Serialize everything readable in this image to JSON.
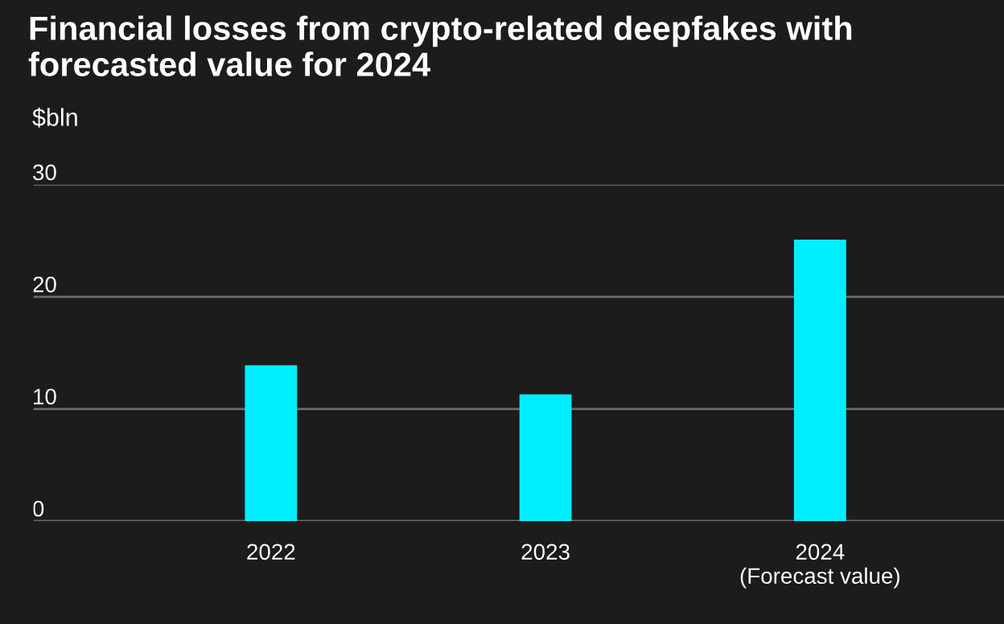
{
  "chart_data": {
    "type": "bar",
    "title": "Financial losses from crypto-related deepfakes with\nforecasted value for 2024",
    "ylabel": "$bln",
    "categories": [
      "2022",
      "2023",
      "2024\n(Forecast value)"
    ],
    "values": [
      13.9,
      11.3,
      25.1
    ],
    "color": "#00eeff",
    "ylim": [
      0,
      30
    ],
    "yticks": [
      0,
      10,
      20,
      30
    ],
    "grid": "y",
    "legend": false
  }
}
